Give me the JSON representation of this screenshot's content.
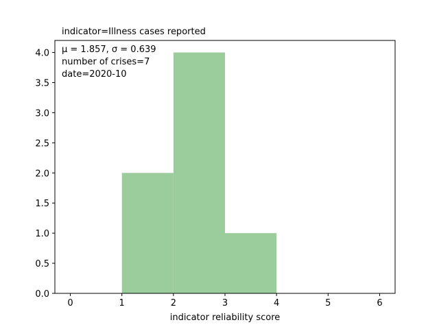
{
  "chart_data": {
    "type": "bar",
    "subtype": "histogram",
    "title": "indicator=Illness cases reported",
    "xlabel": "indicator reliability score",
    "ylabel": "",
    "bins": [
      {
        "x0": 1,
        "x1": 2,
        "count": 2
      },
      {
        "x0": 2,
        "x1": 3,
        "count": 4
      },
      {
        "x0": 3,
        "x1": 4,
        "count": 1
      }
    ],
    "xlim": [
      -0.3,
      6.3
    ],
    "ylim": [
      0,
      4.2
    ],
    "xticks": [
      "0",
      "1",
      "2",
      "3",
      "4",
      "5",
      "6"
    ],
    "yticks": [
      "0.0",
      "0.5",
      "1.0",
      "1.5",
      "2.0",
      "2.5",
      "3.0",
      "3.5",
      "4.0"
    ],
    "annotations": {
      "stats_line": "μ = 1.857,  σ = 0.639",
      "count_line": "number of crises=7",
      "date_line": "date=2020-10"
    },
    "grid": false,
    "legend": "none",
    "bar_color": "#9bcc9b"
  }
}
